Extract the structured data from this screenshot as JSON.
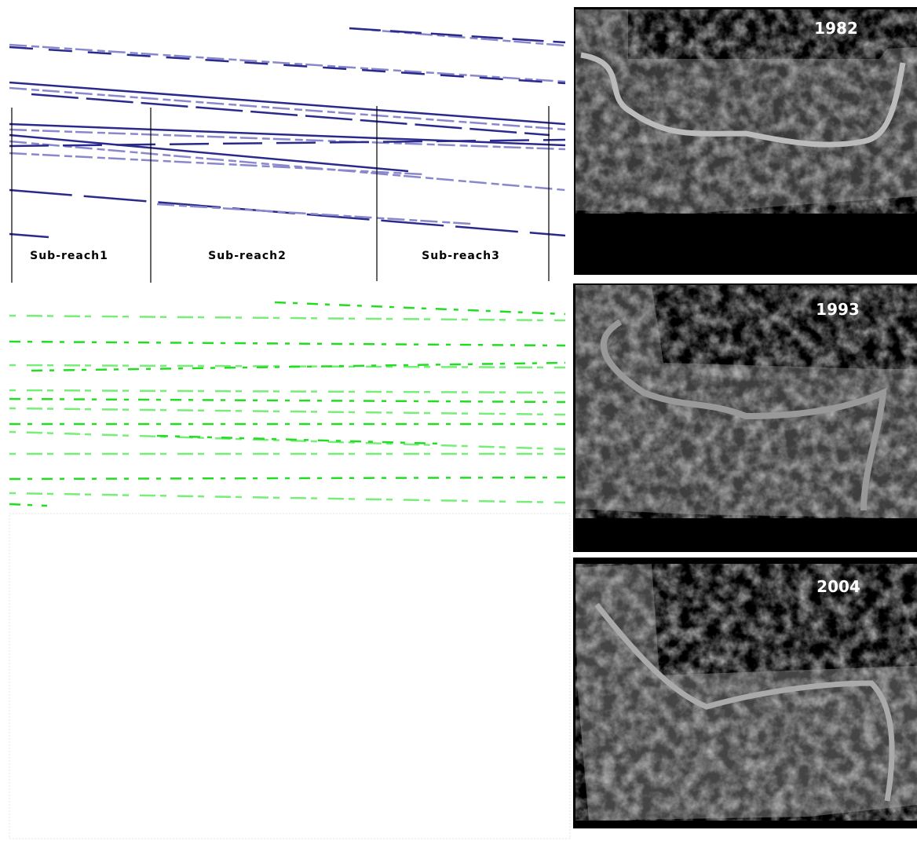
{
  "reaches": [
    "Sub-reach1",
    "Sub-reach2",
    "Sub-reach3"
  ],
  "photos": [
    {
      "year": "1982"
    },
    {
      "year": "1993"
    },
    {
      "year": "2004"
    }
  ]
}
